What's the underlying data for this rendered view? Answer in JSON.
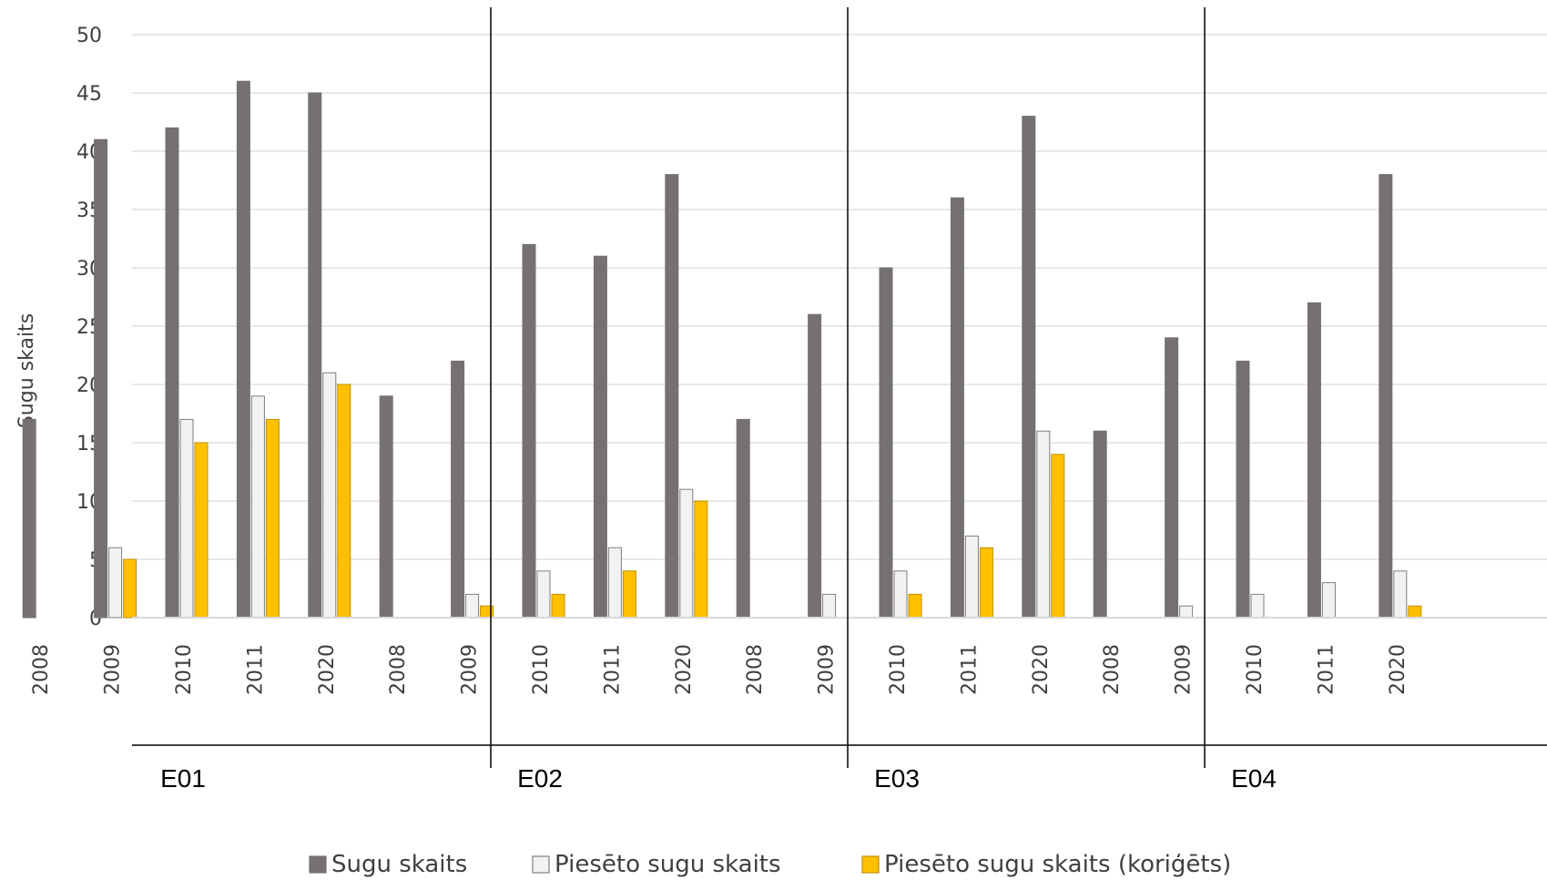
{
  "chart_data": {
    "type": "bar",
    "ylabel": "Sugu skaits",
    "ylim": [
      0,
      50
    ],
    "yticks": [
      "0",
      "5",
      "10",
      "15",
      "20",
      "25",
      "30",
      "35",
      "40",
      "45",
      "50"
    ],
    "grid": true,
    "legend_position": "bottom",
    "groups": [
      {
        "name": "E01",
        "years": [
          "2008",
          "2009",
          "2010",
          "2011",
          "2020"
        ]
      },
      {
        "name": "E02",
        "years": [
          "2008",
          "2009",
          "2010",
          "2011",
          "2020"
        ]
      },
      {
        "name": "E03",
        "years": [
          "2008",
          "2009",
          "2010",
          "2011",
          "2020"
        ]
      },
      {
        "name": "E04",
        "years": [
          "2008",
          "2009",
          "2010",
          "2011",
          "2020"
        ]
      }
    ],
    "series": [
      {
        "name": "Sugu skaits",
        "color": "#767171",
        "values": [
          17,
          41,
          42,
          46,
          45,
          19,
          22,
          32,
          31,
          38,
          17,
          26,
          30,
          36,
          43,
          16,
          24,
          22,
          27,
          38
        ]
      },
      {
        "name": "Piesēto sugu skaits",
        "color": "#F2F2F2",
        "values": [
          0,
          6,
          17,
          19,
          21,
          0,
          2,
          4,
          6,
          11,
          0,
          2,
          4,
          7,
          16,
          0,
          1,
          2,
          3,
          4
        ]
      },
      {
        "name": "Piesēto sugu skaits (koriģēts)",
        "color": "#FFC000",
        "values": [
          0,
          5,
          15,
          17,
          20,
          0,
          1,
          2,
          4,
          10,
          0,
          0,
          2,
          6,
          14,
          0,
          0,
          0,
          0,
          1
        ]
      }
    ]
  }
}
